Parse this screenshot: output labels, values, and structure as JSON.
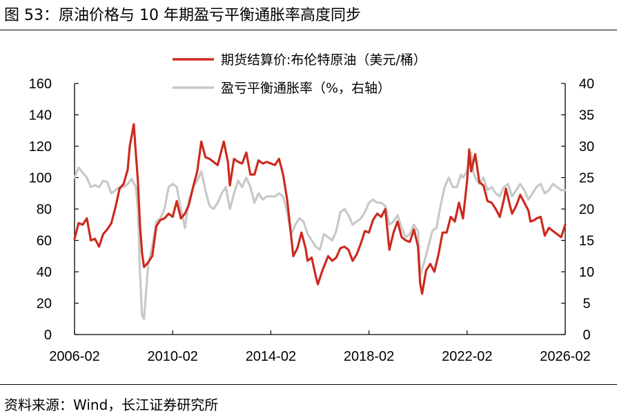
{
  "figure": {
    "title": "图  53：原油价格与 10 年期盈亏平衡通胀率高度同步",
    "source": "资料来源：Wind，长江证券研究所"
  },
  "colors": {
    "brent": "#cc2a1e",
    "breakeven": "#c8c8c8"
  },
  "chart_data": {
    "type": "line",
    "title": "",
    "x_axis": {
      "tick_labels": [
        "2006-02",
        "2010-02",
        "2014-02",
        "2018-02",
        "2022-02",
        "2026-02"
      ],
      "range": [
        "2006-02",
        "2026-02"
      ]
    },
    "y_left": {
      "ylim": [
        0,
        160
      ],
      "ticks": [
        0,
        20,
        40,
        60,
        80,
        100,
        120,
        140,
        160
      ]
    },
    "y_right": {
      "ylim": [
        0,
        40
      ],
      "ticks": [
        0,
        5,
        10,
        15,
        20,
        25,
        30,
        35,
        40
      ]
    },
    "grid": false,
    "legend_position": "top-center",
    "series": [
      {
        "name": "期货结算价:布伦特原油（美元/桶）",
        "axis": "left",
        "color": "#cc2a1e",
        "points": [
          [
            "2006-02",
            61
          ],
          [
            "2006-04",
            71
          ],
          [
            "2006-06",
            70
          ],
          [
            "2006-08",
            74
          ],
          [
            "2006-10",
            60
          ],
          [
            "2006-12",
            61
          ],
          [
            "2007-02",
            56
          ],
          [
            "2007-04",
            64
          ],
          [
            "2007-06",
            67
          ],
          [
            "2007-08",
            71
          ],
          [
            "2007-10",
            81
          ],
          [
            "2007-12",
            93
          ],
          [
            "2008-02",
            96
          ],
          [
            "2008-04",
            105
          ],
          [
            "2008-05",
            120
          ],
          [
            "2008-07",
            134
          ],
          [
            "2008-08",
            115
          ],
          [
            "2008-09",
            98
          ],
          [
            "2008-10",
            70
          ],
          [
            "2008-11",
            52
          ],
          [
            "2008-12",
            43
          ],
          [
            "2009-02",
            46
          ],
          [
            "2009-04",
            50
          ],
          [
            "2009-06",
            69
          ],
          [
            "2009-08",
            73
          ],
          [
            "2009-10",
            74
          ],
          [
            "2009-12",
            77
          ],
          [
            "2010-02",
            75
          ],
          [
            "2010-04",
            85
          ],
          [
            "2010-06",
            74
          ],
          [
            "2010-08",
            77
          ],
          [
            "2010-10",
            83
          ],
          [
            "2010-12",
            94
          ],
          [
            "2011-02",
            104
          ],
          [
            "2011-04",
            123
          ],
          [
            "2011-06",
            113
          ],
          [
            "2011-08",
            112
          ],
          [
            "2011-10",
            110
          ],
          [
            "2011-12",
            108
          ],
          [
            "2012-03",
            123
          ],
          [
            "2012-05",
            110
          ],
          [
            "2012-06",
            95
          ],
          [
            "2012-08",
            112
          ],
          [
            "2012-10",
            110
          ],
          [
            "2012-12",
            109
          ],
          [
            "2013-02",
            116
          ],
          [
            "2013-04",
            102
          ],
          [
            "2013-06",
            102
          ],
          [
            "2013-08",
            111
          ],
          [
            "2013-10",
            109
          ],
          [
            "2013-12",
            110
          ],
          [
            "2014-02",
            109
          ],
          [
            "2014-04",
            108
          ],
          [
            "2014-06",
            112
          ],
          [
            "2014-08",
            102
          ],
          [
            "2014-10",
            86
          ],
          [
            "2014-12",
            62
          ],
          [
            "2015-01",
            50
          ],
          [
            "2015-03",
            55
          ],
          [
            "2015-05",
            65
          ],
          [
            "2015-07",
            55
          ],
          [
            "2015-08",
            47
          ],
          [
            "2015-10",
            49
          ],
          [
            "2015-12",
            37
          ],
          [
            "2016-01",
            32
          ],
          [
            "2016-03",
            40
          ],
          [
            "2016-06",
            50
          ],
          [
            "2016-08",
            47
          ],
          [
            "2016-10",
            49
          ],
          [
            "2016-12",
            55
          ],
          [
            "2017-02",
            56
          ],
          [
            "2017-04",
            54
          ],
          [
            "2017-06",
            47
          ],
          [
            "2017-08",
            51
          ],
          [
            "2017-10",
            58
          ],
          [
            "2017-12",
            66
          ],
          [
            "2018-02",
            65
          ],
          [
            "2018-04",
            73
          ],
          [
            "2018-06",
            77
          ],
          [
            "2018-08",
            75
          ],
          [
            "2018-10",
            80
          ],
          [
            "2018-12",
            54
          ],
          [
            "2019-02",
            65
          ],
          [
            "2019-04",
            72
          ],
          [
            "2019-06",
            62
          ],
          [
            "2019-08",
            60
          ],
          [
            "2019-10",
            59
          ],
          [
            "2019-12",
            67
          ],
          [
            "2020-02",
            56
          ],
          [
            "2020-03",
            33
          ],
          [
            "2020-04",
            26
          ],
          [
            "2020-06",
            41
          ],
          [
            "2020-08",
            45
          ],
          [
            "2020-10",
            40
          ],
          [
            "2020-12",
            51
          ],
          [
            "2021-02",
            65
          ],
          [
            "2021-04",
            65
          ],
          [
            "2021-06",
            75
          ],
          [
            "2021-08",
            72
          ],
          [
            "2021-10",
            84
          ],
          [
            "2021-12",
            74
          ],
          [
            "2022-02",
            98
          ],
          [
            "2022-03",
            118
          ],
          [
            "2022-04",
            104
          ],
          [
            "2022-06",
            115
          ],
          [
            "2022-08",
            97
          ],
          [
            "2022-10",
            95
          ],
          [
            "2022-12",
            85
          ],
          [
            "2023-02",
            84
          ],
          [
            "2023-04",
            80
          ],
          [
            "2023-06",
            75
          ],
          [
            "2023-08",
            86
          ],
          [
            "2023-09",
            93
          ],
          [
            "2023-11",
            82
          ],
          [
            "2023-12",
            77
          ],
          [
            "2024-02",
            82
          ],
          [
            "2024-04",
            89
          ],
          [
            "2024-06",
            84
          ],
          [
            "2024-08",
            79
          ],
          [
            "2024-09",
            72
          ],
          [
            "2024-11",
            73
          ],
          [
            "2024-12",
            74
          ],
          [
            "2025-02",
            75
          ],
          [
            "2025-04",
            63
          ],
          [
            "2025-06",
            68
          ],
          [
            "2025-08",
            66
          ],
          [
            "2025-10",
            64
          ],
          [
            "2025-12",
            62
          ],
          [
            "2026-02",
            70
          ]
        ]
      },
      {
        "name": "盈亏平衡通胀率（%，右轴）",
        "axis": "right",
        "color": "#c8c8c8",
        "points": [
          [
            "2006-02",
            25.0
          ],
          [
            "2006-04",
            26.6
          ],
          [
            "2006-06",
            25.8
          ],
          [
            "2006-08",
            25.0
          ],
          [
            "2006-10",
            23.5
          ],
          [
            "2006-12",
            23.8
          ],
          [
            "2007-02",
            23.5
          ],
          [
            "2007-04",
            24.5
          ],
          [
            "2007-06",
            24.3
          ],
          [
            "2007-08",
            22.5
          ],
          [
            "2007-10",
            23.0
          ],
          [
            "2007-12",
            23.5
          ],
          [
            "2008-02",
            23.5
          ],
          [
            "2008-04",
            24.0
          ],
          [
            "2008-06",
            24.8
          ],
          [
            "2008-08",
            23.5
          ],
          [
            "2008-09",
            20.0
          ],
          [
            "2008-10",
            10.0
          ],
          [
            "2008-11",
            3.0
          ],
          [
            "2008-12",
            2.5
          ],
          [
            "2009-02",
            11.0
          ],
          [
            "2009-04",
            14.0
          ],
          [
            "2009-06",
            18.0
          ],
          [
            "2009-08",
            18.5
          ],
          [
            "2009-10",
            20.0
          ],
          [
            "2009-12",
            23.5
          ],
          [
            "2010-02",
            24.0
          ],
          [
            "2010-04",
            23.5
          ],
          [
            "2010-06",
            20.0
          ],
          [
            "2010-08",
            17.0
          ],
          [
            "2010-10",
            21.5
          ],
          [
            "2010-12",
            23.5
          ],
          [
            "2011-02",
            24.5
          ],
          [
            "2011-04",
            26.0
          ],
          [
            "2011-06",
            23.0
          ],
          [
            "2011-08",
            20.5
          ],
          [
            "2011-10",
            20.0
          ],
          [
            "2011-12",
            21.0
          ],
          [
            "2012-02",
            22.5
          ],
          [
            "2012-04",
            23.5
          ],
          [
            "2012-06",
            20.0
          ],
          [
            "2012-08",
            22.5
          ],
          [
            "2012-10",
            24.5
          ],
          [
            "2012-12",
            23.5
          ],
          [
            "2013-02",
            25.0
          ],
          [
            "2013-04",
            23.5
          ],
          [
            "2013-06",
            21.0
          ],
          [
            "2013-08",
            22.5
          ],
          [
            "2013-10",
            21.5
          ],
          [
            "2013-12",
            22.0
          ],
          [
            "2014-02",
            22.0
          ],
          [
            "2014-04",
            22.0
          ],
          [
            "2014-06",
            22.5
          ],
          [
            "2014-08",
            22.0
          ],
          [
            "2014-10",
            19.5
          ],
          [
            "2014-12",
            16.0
          ],
          [
            "2015-02",
            17.5
          ],
          [
            "2015-04",
            18.5
          ],
          [
            "2015-06",
            18.0
          ],
          [
            "2015-08",
            16.0
          ],
          [
            "2015-10",
            15.0
          ],
          [
            "2015-12",
            14.0
          ],
          [
            "2016-02",
            13.5
          ],
          [
            "2016-04",
            16.0
          ],
          [
            "2016-06",
            15.5
          ],
          [
            "2016-08",
            15.0
          ],
          [
            "2016-10",
            16.5
          ],
          [
            "2016-12",
            19.5
          ],
          [
            "2017-02",
            20.0
          ],
          [
            "2017-04",
            19.0
          ],
          [
            "2017-06",
            17.5
          ],
          [
            "2017-08",
            18.0
          ],
          [
            "2017-10",
            18.5
          ],
          [
            "2017-12",
            19.5
          ],
          [
            "2018-02",
            21.0
          ],
          [
            "2018-04",
            21.5
          ],
          [
            "2018-06",
            21.0
          ],
          [
            "2018-08",
            21.0
          ],
          [
            "2018-10",
            20.5
          ],
          [
            "2018-12",
            17.5
          ],
          [
            "2019-02",
            18.0
          ],
          [
            "2019-04",
            19.0
          ],
          [
            "2019-06",
            17.0
          ],
          [
            "2019-08",
            15.5
          ],
          [
            "2019-10",
            16.0
          ],
          [
            "2019-12",
            17.5
          ],
          [
            "2020-02",
            16.5
          ],
          [
            "2020-03",
            9.5
          ],
          [
            "2020-05",
            11.5
          ],
          [
            "2020-07",
            14.0
          ],
          [
            "2020-09",
            16.5
          ],
          [
            "2020-11",
            17.0
          ],
          [
            "2021-01",
            20.5
          ],
          [
            "2021-03",
            23.5
          ],
          [
            "2021-05",
            25.0
          ],
          [
            "2021-07",
            23.5
          ],
          [
            "2021-09",
            23.5
          ],
          [
            "2021-11",
            25.5
          ],
          [
            "2021-12",
            25.0
          ],
          [
            "2022-02",
            26.0
          ],
          [
            "2022-04",
            29.0
          ],
          [
            "2022-05",
            26.0
          ],
          [
            "2022-06",
            25.0
          ],
          [
            "2022-08",
            24.0
          ],
          [
            "2022-10",
            25.0
          ],
          [
            "2022-12",
            23.0
          ],
          [
            "2023-02",
            23.5
          ],
          [
            "2023-04",
            22.5
          ],
          [
            "2023-06",
            22.0
          ],
          [
            "2023-08",
            23.5
          ],
          [
            "2023-10",
            24.0
          ],
          [
            "2023-12",
            22.0
          ],
          [
            "2024-02",
            23.0
          ],
          [
            "2024-04",
            24.0
          ],
          [
            "2024-06",
            23.0
          ],
          [
            "2024-08",
            21.5
          ],
          [
            "2024-10",
            22.5
          ],
          [
            "2024-12",
            23.5
          ],
          [
            "2025-02",
            24.0
          ],
          [
            "2025-04",
            22.5
          ],
          [
            "2025-06",
            23.0
          ],
          [
            "2025-08",
            24.0
          ],
          [
            "2025-10",
            23.5
          ],
          [
            "2025-12",
            23.0
          ],
          [
            "2026-02",
            23.0
          ]
        ]
      }
    ]
  }
}
